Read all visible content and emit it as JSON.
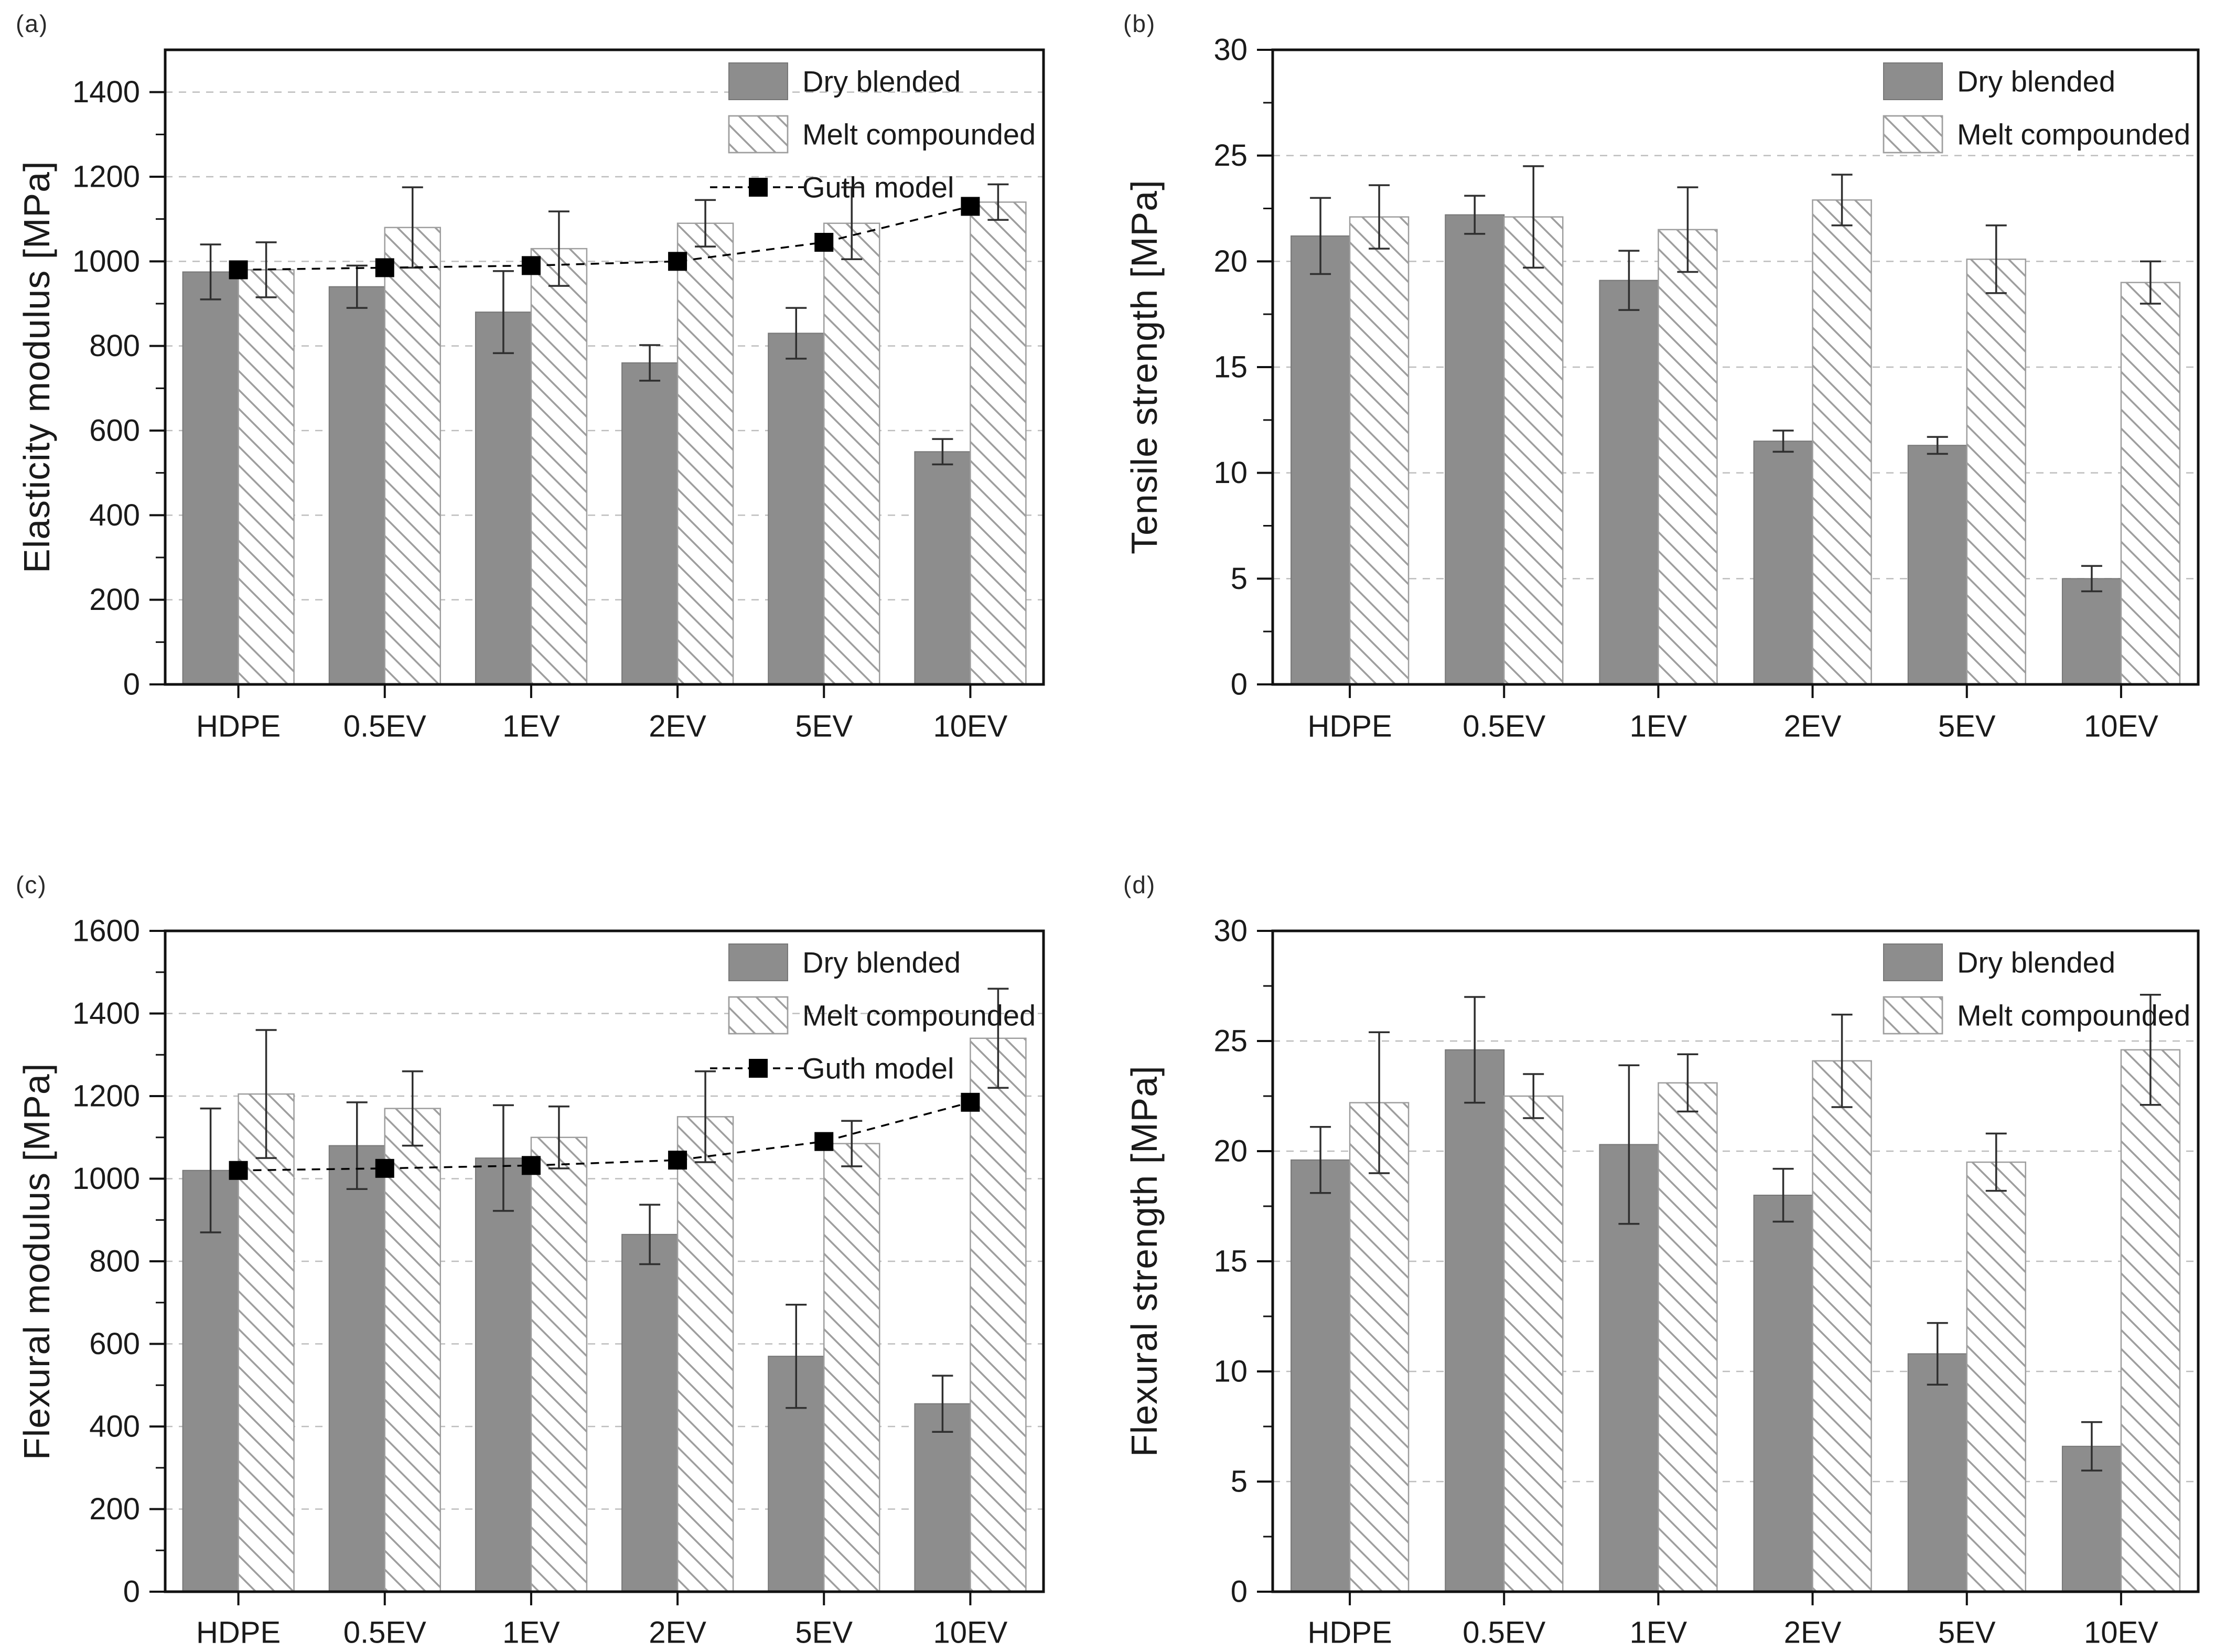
{
  "figure": {
    "background": "#ffffff",
    "categories": [
      "HDPE",
      "0.5EV",
      "1EV",
      "2EV",
      "5EV",
      "10EV"
    ],
    "colors": {
      "dry_fill": "#8d8d8d",
      "dry_border": "#777777",
      "hatch_line": "#9e9e9e",
      "hatch_border": "#9e9e9e",
      "frame": "#111111",
      "grid": "#bdbdbd",
      "error_bar": "#2f2f2f",
      "guth": "#000000",
      "text": "#1a1a1a"
    }
  },
  "chart_data": [
    {
      "type": "bar",
      "panel_label": "(a)",
      "ylabel": "Elasticity modulus [MPa]",
      "xlabel": "",
      "categories": [
        "HDPE",
        "0.5EV",
        "1EV",
        "2EV",
        "5EV",
        "10EV"
      ],
      "ylim": [
        0,
        1500
      ],
      "yticks": [
        0,
        200,
        400,
        600,
        800,
        1000,
        1200,
        1400
      ],
      "yminor_step": 100,
      "grid": true,
      "legend_position": "top-right",
      "legend": [
        "dry",
        "melt",
        "guth"
      ],
      "series": [
        {
          "key": "dry",
          "name": "Dry blended",
          "type": "bar",
          "values": [
            975,
            940,
            880,
            760,
            830,
            550
          ],
          "errors": [
            65,
            50,
            97,
            42,
            60,
            30
          ]
        },
        {
          "key": "melt",
          "name": "Melt compounded",
          "type": "bar",
          "values": [
            980,
            1080,
            1030,
            1090,
            1090,
            1140
          ],
          "errors": [
            65,
            95,
            88,
            55,
            85,
            42
          ]
        },
        {
          "key": "guth",
          "name": "Guth model",
          "type": "line",
          "values": [
            980,
            985,
            990,
            1000,
            1045,
            1130
          ]
        }
      ]
    },
    {
      "type": "bar",
      "panel_label": "(b)",
      "ylabel": "Tensile strength [MPa]",
      "xlabel": "",
      "categories": [
        "HDPE",
        "0.5EV",
        "1EV",
        "2EV",
        "5EV",
        "10EV"
      ],
      "ylim": [
        0,
        30
      ],
      "yticks": [
        0,
        5,
        10,
        15,
        20,
        25,
        30
      ],
      "yminor_step": 2.5,
      "grid": true,
      "legend_position": "top-right",
      "legend": [
        "dry",
        "melt"
      ],
      "series": [
        {
          "key": "dry",
          "name": "Dry blended",
          "type": "bar",
          "values": [
            21.2,
            22.2,
            19.1,
            11.5,
            11.3,
            5.0
          ],
          "errors": [
            1.8,
            0.9,
            1.4,
            0.5,
            0.4,
            0.6
          ]
        },
        {
          "key": "melt",
          "name": "Melt compounded",
          "type": "bar",
          "values": [
            22.1,
            22.1,
            21.5,
            22.9,
            20.1,
            19.0
          ],
          "errors": [
            1.5,
            2.4,
            2.0,
            1.2,
            1.6,
            1.0
          ]
        }
      ]
    },
    {
      "type": "bar",
      "panel_label": "(c)",
      "ylabel": "Flexural modulus [MPa]",
      "xlabel": "",
      "categories": [
        "HDPE",
        "0.5EV",
        "1EV",
        "2EV",
        "5EV",
        "10EV"
      ],
      "ylim": [
        0,
        1600
      ],
      "yticks": [
        0,
        200,
        400,
        600,
        800,
        1000,
        1200,
        1400,
        1600
      ],
      "yminor_step": 100,
      "grid": true,
      "legend_position": "top-right",
      "legend": [
        "dry",
        "melt",
        "guth"
      ],
      "series": [
        {
          "key": "dry",
          "name": "Dry blended",
          "type": "bar",
          "values": [
            1020,
            1080,
            1050,
            865,
            570,
            455
          ],
          "errors": [
            150,
            105,
            128,
            72,
            125,
            68
          ]
        },
        {
          "key": "melt",
          "name": "Melt compounded",
          "type": "bar",
          "values": [
            1205,
            1170,
            1100,
            1150,
            1085,
            1340
          ],
          "errors": [
            155,
            90,
            75,
            110,
            55,
            120
          ]
        },
        {
          "key": "guth",
          "name": "Guth model",
          "type": "line",
          "values": [
            1020,
            1025,
            1032,
            1045,
            1090,
            1185
          ]
        }
      ]
    },
    {
      "type": "bar",
      "panel_label": "(d)",
      "ylabel": "Flexural strength [MPa]",
      "xlabel": "",
      "categories": [
        "HDPE",
        "0.5EV",
        "1EV",
        "2EV",
        "5EV",
        "10EV"
      ],
      "ylim": [
        0,
        30
      ],
      "yticks": [
        0,
        5,
        10,
        15,
        20,
        25,
        30
      ],
      "yminor_step": 2.5,
      "grid": true,
      "legend_position": "top-right",
      "legend": [
        "dry",
        "melt"
      ],
      "series": [
        {
          "key": "dry",
          "name": "Dry blended",
          "type": "bar",
          "values": [
            19.6,
            24.6,
            20.3,
            18.0,
            10.8,
            6.6
          ],
          "errors": [
            1.5,
            2.4,
            3.6,
            1.2,
            1.4,
            1.1
          ]
        },
        {
          "key": "melt",
          "name": "Melt compounded",
          "type": "bar",
          "values": [
            22.2,
            22.5,
            23.1,
            24.1,
            19.5,
            24.6
          ],
          "errors": [
            3.2,
            1.0,
            1.3,
            2.1,
            1.3,
            2.5
          ]
        }
      ]
    }
  ]
}
